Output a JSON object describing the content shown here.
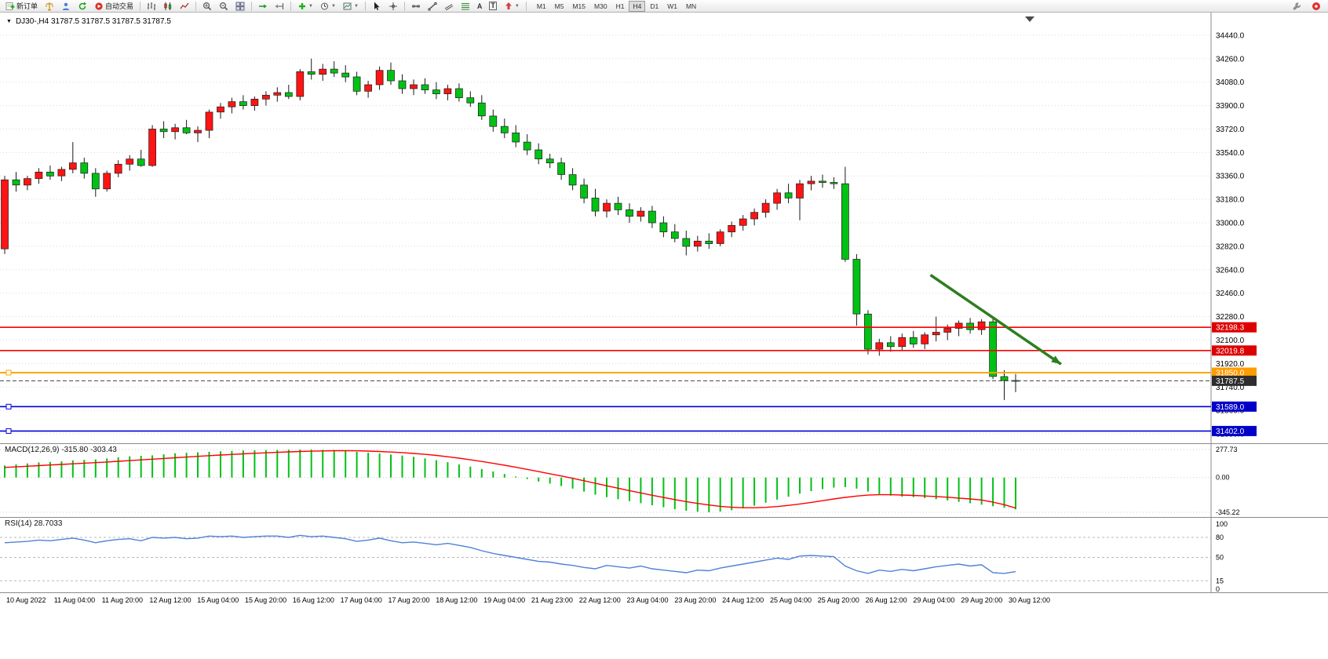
{
  "toolbar": {
    "new_order_label": "新订单",
    "autotrading_label": "自动交易",
    "timeframes": [
      "M1",
      "M5",
      "M15",
      "M30",
      "H1",
      "H4",
      "D1",
      "W1",
      "MN"
    ],
    "active_timeframe": "H4",
    "icons": {
      "collapse_arrow": "▼",
      "dropdown_arrow": "▼",
      "text_tool": "A",
      "label_tool": "T"
    }
  },
  "chart": {
    "header_label": "DJ30-,H4 31787.5 31787.5 31787.5 31787.5",
    "symbol": "DJ30-",
    "timeframe": "H4",
    "current_price": 31787.5,
    "hlines": [
      {
        "price": 32198.3,
        "label": "32198.3",
        "color": "#ff0000",
        "label_bg": "#dd0000",
        "width": 1.6,
        "handles": false,
        "style": "solid"
      },
      {
        "price": 32019.8,
        "label": "32019.8",
        "color": "#ff0000",
        "label_bg": "#dd0000",
        "width": 1.6,
        "handles": false,
        "style": "solid"
      },
      {
        "price": 31850.0,
        "label": "31850.0",
        "color": "#ffa500",
        "label_bg": "#ff9c00",
        "width": 2,
        "handles": true,
        "style": "solid"
      },
      {
        "price": 31787.5,
        "label": "31787.5",
        "color": "#404040",
        "label_bg": "#2e2e2e",
        "width": 1,
        "handles": false,
        "style": "current"
      },
      {
        "price": 31589.0,
        "label": "31589.0",
        "color": "#0000e0",
        "label_bg": "#0000c8",
        "width": 1.6,
        "handles": true,
        "style": "solid"
      },
      {
        "price": 31402.0,
        "label": "31402.0",
        "color": "#0000e0",
        "label_bg": "#0000c8",
        "width": 1.6,
        "handles": true,
        "style": "solid"
      }
    ],
    "arrow": {
      "from": {
        "time_index": 81.5,
        "price": 32600
      },
      "to": {
        "time_index": 93,
        "price": 31915
      },
      "color": "#2f7d1f"
    }
  },
  "chart_data": [
    {
      "type": "candlestick",
      "symbol": "DJ30-",
      "timeframe": "H4",
      "bull_color": "#ff1414",
      "bear_color": "#00c214",
      "wick_color": "#1a1a1a",
      "y_axis": {
        "min": 31302,
        "max": 34614,
        "tick_step": 180,
        "ticks": [
          34440,
          34260,
          34080,
          33900,
          33720,
          33540,
          33360,
          33180,
          33000,
          32820,
          32640,
          32460,
          32280,
          32100,
          31920,
          31740,
          31560,
          31380
        ]
      },
      "x_axis": {
        "labels": [
          "10 Aug 2022",
          "11 Aug 04:00",
          "11 Aug 20:00",
          "12 Aug 12:00",
          "15 Aug 04:00",
          "15 Aug 20:00",
          "16 Aug 12:00",
          "17 Aug 04:00",
          "17 Aug 20:00",
          "18 Aug 12:00",
          "19 Aug 04:00",
          "21 Aug 23:00",
          "22 Aug 12:00",
          "23 Aug 04:00",
          "23 Aug 20:00",
          "24 Aug 12:00",
          "25 Aug 04:00",
          "25 Aug 20:00",
          "26 Aug 12:00",
          "29 Aug 04:00",
          "29 Aug 20:00",
          "30 Aug 12:00"
        ]
      },
      "candles": [
        [
          32800,
          33360,
          32760,
          33330
        ],
        [
          33330,
          33390,
          33240,
          33290
        ],
        [
          33290,
          33360,
          33250,
          33340
        ],
        [
          33340,
          33420,
          33300,
          33390
        ],
        [
          33390,
          33440,
          33330,
          33360
        ],
        [
          33360,
          33430,
          33320,
          33410
        ],
        [
          33410,
          33620,
          33380,
          33460
        ],
        [
          33460,
          33500,
          33340,
          33380
        ],
        [
          33380,
          33420,
          33200,
          33260
        ],
        [
          33260,
          33400,
          33240,
          33380
        ],
        [
          33380,
          33480,
          33350,
          33450
        ],
        [
          33450,
          33520,
          33400,
          33490
        ],
        [
          33490,
          33560,
          33430,
          33440
        ],
        [
          33440,
          33750,
          33430,
          33720
        ],
        [
          33720,
          33780,
          33650,
          33700
        ],
        [
          33700,
          33760,
          33640,
          33730
        ],
        [
          33730,
          33790,
          33680,
          33690
        ],
        [
          33690,
          33740,
          33620,
          33710
        ],
        [
          33710,
          33870,
          33650,
          33850
        ],
        [
          33850,
          33920,
          33800,
          33890
        ],
        [
          33890,
          33960,
          33840,
          33930
        ],
        [
          33930,
          33980,
          33870,
          33900
        ],
        [
          33900,
          33970,
          33860,
          33950
        ],
        [
          33950,
          34010,
          33900,
          33980
        ],
        [
          33980,
          34040,
          33930,
          34000
        ],
        [
          34000,
          34060,
          33950,
          33970
        ],
        [
          33970,
          34180,
          33940,
          34160
        ],
        [
          34160,
          34260,
          34100,
          34140
        ],
        [
          34140,
          34220,
          34090,
          34180
        ],
        [
          34180,
          34240,
          34120,
          34150
        ],
        [
          34150,
          34210,
          34080,
          34120
        ],
        [
          34120,
          34160,
          33980,
          34010
        ],
        [
          34010,
          34090,
          33960,
          34060
        ],
        [
          34060,
          34200,
          34020,
          34170
        ],
        [
          34170,
          34230,
          34060,
          34090
        ],
        [
          34090,
          34140,
          33990,
          34030
        ],
        [
          34030,
          34100,
          33980,
          34060
        ],
        [
          34060,
          34110,
          33990,
          34020
        ],
        [
          34020,
          34080,
          33950,
          33990
        ],
        [
          33990,
          34060,
          33940,
          34030
        ],
        [
          34030,
          34070,
          33930,
          33960
        ],
        [
          33960,
          34010,
          33890,
          33920
        ],
        [
          33920,
          33980,
          33790,
          33820
        ],
        [
          33820,
          33870,
          33700,
          33740
        ],
        [
          33740,
          33800,
          33650,
          33690
        ],
        [
          33690,
          33750,
          33580,
          33620
        ],
        [
          33620,
          33680,
          33520,
          33560
        ],
        [
          33560,
          33610,
          33450,
          33490
        ],
        [
          33490,
          33530,
          33420,
          33460
        ],
        [
          33460,
          33500,
          33330,
          33370
        ],
        [
          33370,
          33420,
          33250,
          33290
        ],
        [
          33290,
          33340,
          33150,
          33190
        ],
        [
          33190,
          33260,
          33050,
          33090
        ],
        [
          33090,
          33180,
          33040,
          33150
        ],
        [
          33150,
          33200,
          33060,
          33100
        ],
        [
          33100,
          33150,
          33000,
          33050
        ],
        [
          33050,
          33120,
          33010,
          33090
        ],
        [
          33090,
          33130,
          32960,
          33000
        ],
        [
          33000,
          33050,
          32890,
          32930
        ],
        [
          32930,
          32990,
          32850,
          32880
        ],
        [
          32880,
          32940,
          32750,
          32820
        ],
        [
          32820,
          32900,
          32780,
          32860
        ],
        [
          32860,
          32920,
          32800,
          32840
        ],
        [
          32840,
          32950,
          32820,
          32930
        ],
        [
          32930,
          33010,
          32890,
          32980
        ],
        [
          32980,
          33060,
          32940,
          33030
        ],
        [
          33030,
          33110,
          32980,
          33080
        ],
        [
          33080,
          33180,
          33040,
          33150
        ],
        [
          33150,
          33260,
          33100,
          33230
        ],
        [
          33230,
          33300,
          33150,
          33190
        ],
        [
          33190,
          33330,
          33020,
          33300
        ],
        [
          33300,
          33360,
          33250,
          33320
        ],
        [
          33320,
          33370,
          33270,
          33310
        ],
        [
          33310,
          33350,
          33260,
          33300
        ],
        [
          33300,
          33430,
          32700,
          32720
        ],
        [
          32720,
          32760,
          32210,
          32300
        ],
        [
          32300,
          32330,
          31990,
          32030
        ],
        [
          32030,
          32110,
          31980,
          32080
        ],
        [
          32080,
          32130,
          32010,
          32050
        ],
        [
          32050,
          32150,
          32020,
          32120
        ],
        [
          32120,
          32170,
          32040,
          32070
        ],
        [
          32070,
          32160,
          32030,
          32140
        ],
        [
          32140,
          32280,
          32090,
          32160
        ],
        [
          32160,
          32220,
          32100,
          32190
        ],
        [
          32190,
          32250,
          32130,
          32230
        ],
        [
          32230,
          32270,
          32150,
          32180
        ],
        [
          32180,
          32260,
          32140,
          32240
        ],
        [
          32240,
          32270,
          31800,
          31820
        ],
        [
          31820,
          31870,
          31640,
          31790
        ],
        [
          31790,
          31840,
          31700,
          31787.5
        ]
      ]
    },
    {
      "type": "macd",
      "label_text": "MACD(12,26,9) -315.80 -303.43",
      "params": "12,26,9",
      "macd_value": -315.8,
      "signal_value": -303.43,
      "ylim": [
        -345.22,
        277.73
      ],
      "ticks": [
        277.73,
        0,
        -345.22
      ],
      "histogram_color": "#00c214",
      "signal_color": "#ff0000",
      "histogram": [
        120,
        130,
        140,
        150,
        155,
        160,
        170,
        175,
        180,
        190,
        200,
        210,
        215,
        220,
        230,
        240,
        245,
        250,
        255,
        260,
        264,
        268,
        270,
        272,
        274,
        276,
        277.7,
        277,
        275,
        272,
        264,
        256,
        246,
        238,
        228,
        218,
        205,
        190,
        172,
        152,
        130,
        108,
        85,
        60,
        35,
        10,
        -15,
        -40,
        -60,
        -85,
        -110,
        -140,
        -170,
        -195,
        -215,
        -235,
        -255,
        -275,
        -295,
        -315,
        -330,
        -340,
        -345.2,
        -338,
        -325,
        -305,
        -280,
        -250,
        -220,
        -190,
        -160,
        -135,
        -115,
        -100,
        -95,
        -110,
        -140,
        -165,
        -180,
        -190,
        -195,
        -205,
        -215,
        -228,
        -242,
        -256,
        -270,
        -285,
        -300,
        -315.8
      ],
      "signal": [
        100,
        106,
        112,
        118,
        124,
        130,
        136,
        142,
        148,
        154,
        161,
        168,
        175,
        182,
        189,
        196,
        203,
        210,
        217,
        223,
        229,
        235,
        240,
        245,
        250,
        254,
        258,
        261,
        264,
        266,
        266,
        265,
        262,
        258,
        253,
        247,
        239,
        230,
        219,
        206,
        192,
        176,
        159,
        141,
        122,
        102,
        81,
        59,
        37,
        15,
        -8,
        -32,
        -57,
        -82,
        -106,
        -130,
        -153,
        -176,
        -198,
        -219,
        -239,
        -257,
        -273,
        -286,
        -295,
        -300,
        -300,
        -296,
        -288,
        -277,
        -263,
        -247,
        -230,
        -213,
        -197,
        -184,
        -175,
        -171,
        -171,
        -174,
        -178,
        -183,
        -189,
        -196,
        -204,
        -213,
        -223,
        -245,
        -270,
        -303.4
      ]
    },
    {
      "type": "rsi",
      "label_text": "RSI(14) 28.7033",
      "period": 14,
      "current_value": 28.7033,
      "ylim": [
        0,
        100
      ],
      "ticks": [
        100,
        80,
        50,
        15,
        0
      ],
      "levels": [
        80,
        50,
        15
      ],
      "line_color": "#4f81d8",
      "values": [
        72,
        73,
        74,
        76,
        75,
        77,
        79,
        76,
        72,
        75,
        77,
        78,
        75,
        80,
        79,
        80,
        78,
        79,
        82,
        81,
        82,
        80,
        81,
        82,
        82,
        80,
        83,
        81,
        82,
        80,
        78,
        74,
        76,
        79,
        75,
        72,
        73,
        71,
        69,
        71,
        68,
        65,
        60,
        56,
        53,
        50,
        47,
        44,
        43,
        40,
        38,
        35,
        33,
        38,
        36,
        34,
        37,
        33,
        31,
        29,
        27,
        31,
        30,
        34,
        37,
        40,
        43,
        46,
        49,
        47,
        52,
        53,
        52,
        51,
        37,
        30,
        26,
        31,
        29,
        32,
        30,
        33,
        36,
        38,
        40,
        37,
        39,
        27,
        26,
        28.7
      ]
    }
  ]
}
